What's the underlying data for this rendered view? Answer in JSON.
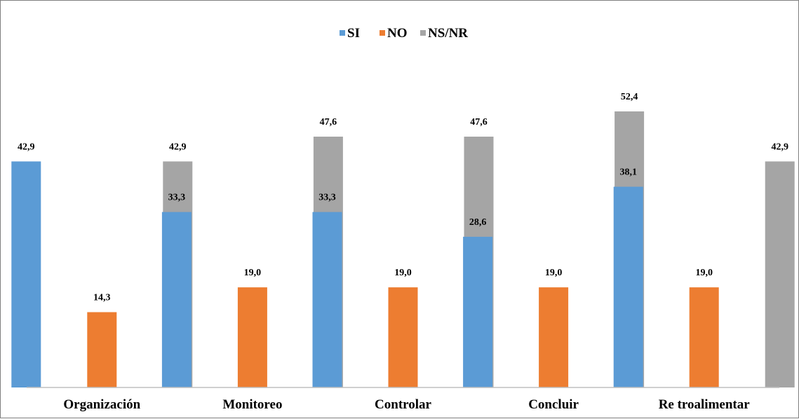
{
  "chart_data": {
    "type": "bar",
    "title": "",
    "xlabel": "",
    "ylabel": "",
    "categories": [
      "Organización",
      "Monitoreo",
      "Controlar",
      "Concluir",
      "Re troalimentar"
    ],
    "series": [
      {
        "name": "SI",
        "color": "#5B9BD5",
        "values": [
          42.9,
          33.3,
          33.3,
          28.6,
          38.1
        ],
        "labels": [
          "42,9",
          "33,3",
          "33,3",
          "28,6",
          "38,1"
        ]
      },
      {
        "name": "NO",
        "color": "#ED7D31",
        "values": [
          14.3,
          19.0,
          19.0,
          19.0,
          19.0
        ],
        "labels": [
          "14,3",
          "19,0",
          "19,0",
          "19,0",
          "19,0"
        ]
      },
      {
        "name": "NS/NR",
        "color": "#A5A5A5",
        "values": [
          42.9,
          47.6,
          47.6,
          52.4,
          42.9
        ],
        "labels": [
          "42,9",
          "47,6",
          "47,6",
          "52,4",
          "42,9"
        ]
      }
    ],
    "ylim": [
      0,
      60
    ],
    "grid": false,
    "legend_position": "top"
  }
}
